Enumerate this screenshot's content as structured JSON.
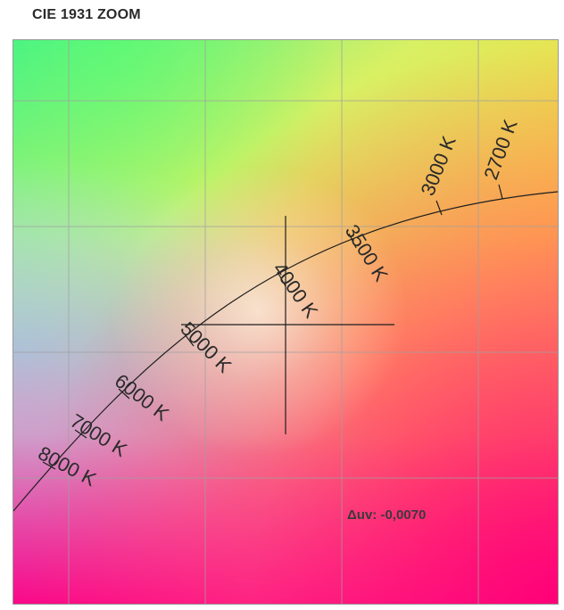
{
  "title": "CIE 1931 ZOOM",
  "delta_uv_readout": "Δuv: -0,0070",
  "isotherm_labels": [
    "2700 K",
    "3000 K",
    "3500 K",
    "4000 K",
    "5000 K",
    "6000 K",
    "7000 K",
    "8000 K"
  ],
  "colors": {
    "grid": "#a0a0a0",
    "curve": "#1e1e1e",
    "text": "#2a2a2a"
  }
}
